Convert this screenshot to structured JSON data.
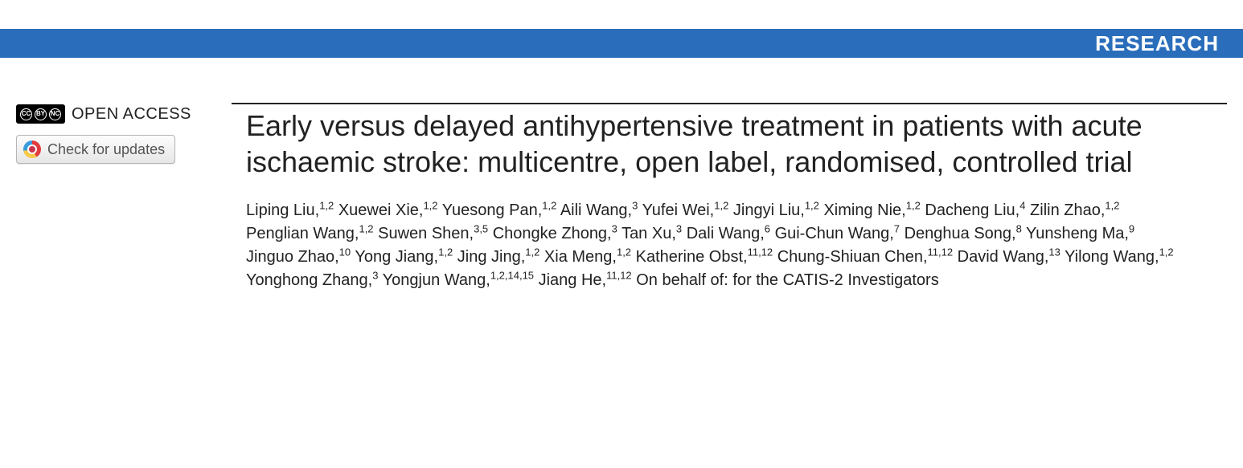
{
  "banner": {
    "label": "RESEARCH",
    "background_color": "#2a6ebb",
    "text_color": "#ffffff"
  },
  "left": {
    "open_access_label": "OPEN ACCESS",
    "check_updates_label": "Check for updates"
  },
  "article": {
    "title": "Early versus delayed antihypertensive treatment in patients with acute ischaemic stroke: multicentre, open label, randomised, controlled trial",
    "authors": [
      {
        "name": "Liping Liu",
        "affil": "1,2"
      },
      {
        "name": "Xuewei Xie",
        "affil": "1,2"
      },
      {
        "name": "Yuesong Pan",
        "affil": "1,2"
      },
      {
        "name": "Aili Wang",
        "affil": "3"
      },
      {
        "name": "Yufei Wei",
        "affil": "1,2"
      },
      {
        "name": "Jingyi Liu",
        "affil": "1,2"
      },
      {
        "name": "Ximing Nie",
        "affil": "1,2"
      },
      {
        "name": "Dacheng Liu",
        "affil": "4"
      },
      {
        "name": "Zilin Zhao",
        "affil": "1,2"
      },
      {
        "name": "Penglian Wang",
        "affil": "1,2"
      },
      {
        "name": "Suwen Shen",
        "affil": "3,5"
      },
      {
        "name": "Chongke Zhong",
        "affil": "3"
      },
      {
        "name": "Tan Xu",
        "affil": "3"
      },
      {
        "name": "Dali Wang",
        "affil": "6"
      },
      {
        "name": "Gui-Chun Wang",
        "affil": "7"
      },
      {
        "name": "Denghua Song",
        "affil": "8"
      },
      {
        "name": "Yunsheng Ma",
        "affil": "9"
      },
      {
        "name": "Jinguo Zhao",
        "affil": "10"
      },
      {
        "name": "Yong Jiang",
        "affil": "1,2"
      },
      {
        "name": "Jing Jing",
        "affil": "1,2"
      },
      {
        "name": "Xia Meng",
        "affil": "1,2"
      },
      {
        "name": "Katherine Obst",
        "affil": "11,12"
      },
      {
        "name": "Chung-Shiuan Chen",
        "affil": "11,12"
      },
      {
        "name": "David Wang",
        "affil": "13"
      },
      {
        "name": "Yilong Wang",
        "affil": "1,2"
      },
      {
        "name": "Yonghong Zhang",
        "affil": "3"
      },
      {
        "name": "Yongjun Wang",
        "affil": "1,2,14,15"
      },
      {
        "name": "Jiang He",
        "affil": "11,12"
      }
    ],
    "trailing_text": "On behalf of: for the CATIS-2 Investigators"
  },
  "styling": {
    "title_fontsize": 36,
    "author_fontsize": 20,
    "banner_height": 36,
    "rule_color": "#222222",
    "body_font": "Arial"
  }
}
